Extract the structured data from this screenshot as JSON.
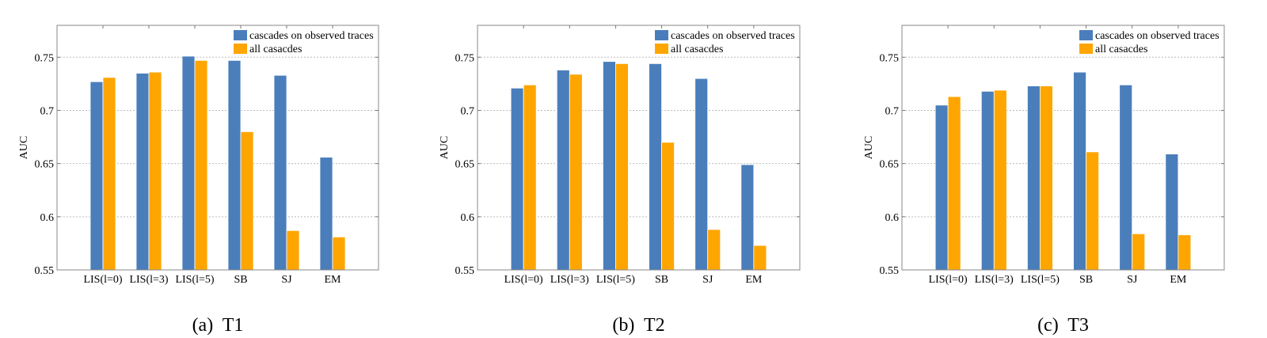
{
  "chart_data": [
    {
      "type": "bar",
      "caption": "(a)  T1",
      "ylabel": "AUC",
      "ylim": [
        0.55,
        0.78
      ],
      "yticks": [
        "0.55",
        "0.6",
        "0.65",
        "0.7",
        "0.75"
      ],
      "grid": true,
      "legend": "top-right",
      "categories": [
        "LIS(l=0)",
        "LIS(l=3)",
        "LIS(l=5)",
        "SB",
        "SJ",
        "EM"
      ],
      "series": [
        {
          "name": "cascades on observed traces",
          "color": "#4a7ebb",
          "values": [
            0.727,
            0.735,
            0.751,
            0.747,
            0.733,
            0.656
          ]
        },
        {
          "name": "all casacdes",
          "color": "#ffa500",
          "values": [
            0.731,
            0.736,
            0.747,
            0.68,
            0.587,
            0.581
          ]
        }
      ]
    },
    {
      "type": "bar",
      "caption": "(b)  T2",
      "ylabel": "AUC",
      "ylim": [
        0.55,
        0.78
      ],
      "yticks": [
        "0.55",
        "0.6",
        "0.65",
        "0.7",
        "0.75"
      ],
      "grid": true,
      "legend": "top-right",
      "categories": [
        "LIS(l=0)",
        "LIS(l=3)",
        "LIS(l=5)",
        "SB",
        "SJ",
        "EM"
      ],
      "series": [
        {
          "name": "cascades on observed traces",
          "color": "#4a7ebb",
          "values": [
            0.721,
            0.738,
            0.746,
            0.744,
            0.73,
            0.649
          ]
        },
        {
          "name": "all casacdes",
          "color": "#ffa500",
          "values": [
            0.724,
            0.734,
            0.744,
            0.67,
            0.588,
            0.573
          ]
        }
      ]
    },
    {
      "type": "bar",
      "caption": "(c)  T3",
      "ylabel": "AUC",
      "ylim": [
        0.55,
        0.78
      ],
      "yticks": [
        "0.55",
        "0.6",
        "0.65",
        "0.7",
        "0.75"
      ],
      "grid": true,
      "legend": "top-right",
      "categories": [
        "LIS(l=0)",
        "LIS(l=3)",
        "LIS(l=5)",
        "SB",
        "SJ",
        "EM"
      ],
      "series": [
        {
          "name": "cascades on observed traces",
          "color": "#4a7ebb",
          "values": [
            0.705,
            0.718,
            0.723,
            0.736,
            0.724,
            0.659
          ]
        },
        {
          "name": "all casacdes",
          "color": "#ffa500",
          "values": [
            0.713,
            0.719,
            0.723,
            0.661,
            0.584,
            0.583
          ]
        }
      ]
    }
  ]
}
